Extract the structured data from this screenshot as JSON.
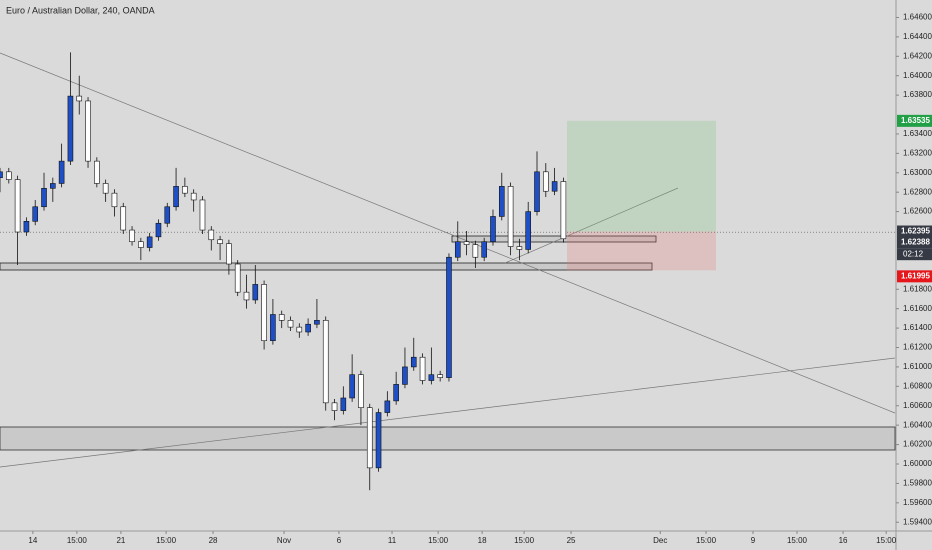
{
  "chart_data": {
    "type": "candlestick",
    "title": "Euro / Australian Dollar, 240, OANDA",
    "x": [
      0,
      3,
      6,
      9,
      12,
      15,
      18,
      21,
      24,
      27,
      30,
      33,
      36,
      39,
      42,
      45,
      48,
      51,
      54,
      57,
      60,
      63,
      66,
      69,
      72,
      75,
      78,
      81,
      84,
      87,
      90,
      93,
      96,
      99,
      102,
      105,
      108,
      111,
      114,
      117,
      120,
      123,
      126,
      129,
      132,
      135,
      138,
      141,
      144,
      147,
      150,
      153,
      156,
      159,
      162,
      165,
      168,
      171,
      174,
      177,
      180,
      183,
      186,
      189,
      192
    ],
    "open": [
      1.6295,
      1.6301,
      1.6293,
      1.6239,
      1.625,
      1.6265,
      1.6284,
      1.6289,
      1.6312,
      1.6379,
      1.6374,
      1.6312,
      1.6289,
      1.6279,
      1.6265,
      1.6241,
      1.6229,
      1.6223,
      1.6234,
      1.6248,
      1.6265,
      1.6286,
      1.6279,
      1.6272,
      1.6241,
      1.6231,
      1.6227,
      1.6206,
      1.6177,
      1.6169,
      1.6185,
      1.6127,
      1.6154,
      1.6148,
      1.6141,
      1.6136,
      1.6144,
      1.6148,
      1.6063,
      1.6055,
      1.6068,
      1.6092,
      1.6058,
      1.5996,
      1.6053,
      1.6065,
      1.6082,
      1.61,
      1.611,
      1.6086,
      1.6092,
      1.6089,
      1.6213,
      1.6229,
      1.6226,
      1.6213,
      1.6229,
      1.6255,
      1.6286,
      1.6224,
      1.6221,
      1.626,
      1.6301,
      1.6281,
      1.6291
    ],
    "high": [
      1.6305,
      1.6305,
      1.6297,
      1.6254,
      1.6272,
      1.63,
      1.6295,
      1.633,
      1.6424,
      1.64,
      1.6378,
      1.6316,
      1.6293,
      1.6283,
      1.6269,
      1.6245,
      1.6233,
      1.6238,
      1.6252,
      1.6269,
      1.6305,
      1.6295,
      1.6283,
      1.6276,
      1.6245,
      1.6235,
      1.6231,
      1.621,
      1.6195,
      1.6205,
      1.6189,
      1.617,
      1.6158,
      1.6152,
      1.6145,
      1.615,
      1.617,
      1.6152,
      1.6067,
      1.608,
      1.6113,
      1.6096,
      1.6062,
      1.6057,
      1.6075,
      1.6095,
      1.612,
      1.613,
      1.6114,
      1.612,
      1.6096,
      1.6217,
      1.625,
      1.624,
      1.623,
      1.6233,
      1.6262,
      1.63,
      1.629,
      1.6232,
      1.627,
      1.6322,
      1.631,
      1.6305,
      1.6295
    ],
    "low": [
      1.628,
      1.6289,
      1.6205,
      1.6235,
      1.6246,
      1.6261,
      1.627,
      1.6285,
      1.6308,
      1.636,
      1.6305,
      1.6285,
      1.627,
      1.6255,
      1.6237,
      1.6225,
      1.621,
      1.6219,
      1.623,
      1.6244,
      1.6261,
      1.6275,
      1.626,
      1.6237,
      1.622,
      1.621,
      1.6195,
      1.6173,
      1.616,
      1.6165,
      1.6118,
      1.6123,
      1.614,
      1.6137,
      1.613,
      1.6132,
      1.614,
      1.6055,
      1.6045,
      1.6051,
      1.6064,
      1.604,
      1.5973,
      1.5992,
      1.6049,
      1.6061,
      1.6078,
      1.6096,
      1.6082,
      1.6082,
      1.6085,
      1.6085,
      1.6209,
      1.6215,
      1.6202,
      1.6209,
      1.6225,
      1.6251,
      1.6215,
      1.621,
      1.6217,
      1.6256,
      1.6275,
      1.6277,
      1.6228
    ],
    "close": [
      1.6301,
      1.6293,
      1.6239,
      1.625,
      1.6265,
      1.6284,
      1.6289,
      1.6312,
      1.6379,
      1.6374,
      1.6312,
      1.6289,
      1.6279,
      1.6265,
      1.6241,
      1.6229,
      1.6223,
      1.6234,
      1.6248,
      1.6265,
      1.6286,
      1.6279,
      1.6272,
      1.6241,
      1.6231,
      1.6227,
      1.6206,
      1.6177,
      1.6169,
      1.6185,
      1.6127,
      1.6154,
      1.6148,
      1.6141,
      1.6136,
      1.6144,
      1.6148,
      1.6063,
      1.6055,
      1.6068,
      1.6092,
      1.6058,
      1.5996,
      1.6053,
      1.6065,
      1.6082,
      1.61,
      1.611,
      1.6086,
      1.6092,
      1.6089,
      1.6213,
      1.6229,
      1.6226,
      1.6213,
      1.6229,
      1.6255,
      1.6286,
      1.6224,
      1.6221,
      1.626,
      1.6301,
      1.6281,
      1.6291,
      1.6232
    ],
    "up_color": "#1f4fc4",
    "down_color": "#ffffff",
    "xlim": [
      0,
      305
    ],
    "ylim": [
      1.5932,
      1.6478
    ],
    "xticks": [
      {
        "value": 11.2,
        "label": "14"
      },
      {
        "value": 26.2,
        "label": "15:00"
      },
      {
        "value": 41.2,
        "label": "21"
      },
      {
        "value": 56.6,
        "label": "15:00"
      },
      {
        "value": 72.6,
        "label": "28"
      },
      {
        "value": 96.8,
        "label": "Nov"
      },
      {
        "value": 115.5,
        "label": "6"
      },
      {
        "value": 133.6,
        "label": "11"
      },
      {
        "value": 149.3,
        "label": "15:00"
      },
      {
        "value": 164.3,
        "label": "18"
      },
      {
        "value": 178.6,
        "label": "15:00"
      },
      {
        "value": 194.6,
        "label": "25"
      },
      {
        "value": 225,
        "label": "Dec"
      },
      {
        "value": 240.6,
        "label": "15:00"
      },
      {
        "value": 256.6,
        "label": "9"
      },
      {
        "value": 271.6,
        "label": "15:00"
      },
      {
        "value": 287.3,
        "label": "16"
      },
      {
        "value": 302,
        "label": "15:00"
      }
    ],
    "yticks": [
      {
        "value": 1.646,
        "label": "1.64600"
      },
      {
        "value": 1.644,
        "label": "1.64400"
      },
      {
        "value": 1.642,
        "label": "1.64200"
      },
      {
        "value": 1.64,
        "label": "1.64000"
      },
      {
        "value": 1.638,
        "label": "1.63800"
      },
      {
        "value": 1.634,
        "label": "1.63400"
      },
      {
        "value": 1.632,
        "label": "1.63200"
      },
      {
        "value": 1.63,
        "label": "1.63000"
      },
      {
        "value": 1.628,
        "label": "1.62800"
      },
      {
        "value": 1.626,
        "label": "1.62600"
      },
      {
        "value": 1.618,
        "label": "1.61800"
      },
      {
        "value": 1.616,
        "label": "1.61600"
      },
      {
        "value": 1.614,
        "label": "1.61400"
      },
      {
        "value": 1.612,
        "label": "1.61200"
      },
      {
        "value": 1.61,
        "label": "1.61000"
      },
      {
        "value": 1.608,
        "label": "1.60800"
      },
      {
        "value": 1.606,
        "label": "1.60600"
      },
      {
        "value": 1.604,
        "label": "1.60400"
      },
      {
        "value": 1.602,
        "label": "1.60200"
      },
      {
        "value": 1.6,
        "label": "1.60000"
      },
      {
        "value": 1.598,
        "label": "1.59800"
      },
      {
        "value": 1.596,
        "label": "1.59600"
      },
      {
        "value": 1.594,
        "label": "1.59400"
      }
    ],
    "position": {
      "target": 1.63535,
      "entry": 1.62395,
      "stop": 1.61995,
      "target_color": "#22a046",
      "entry_color": "#363a45",
      "stop_color": "#e5171b"
    },
    "last_price": 1.62388,
    "countdown": "02:12"
  }
}
